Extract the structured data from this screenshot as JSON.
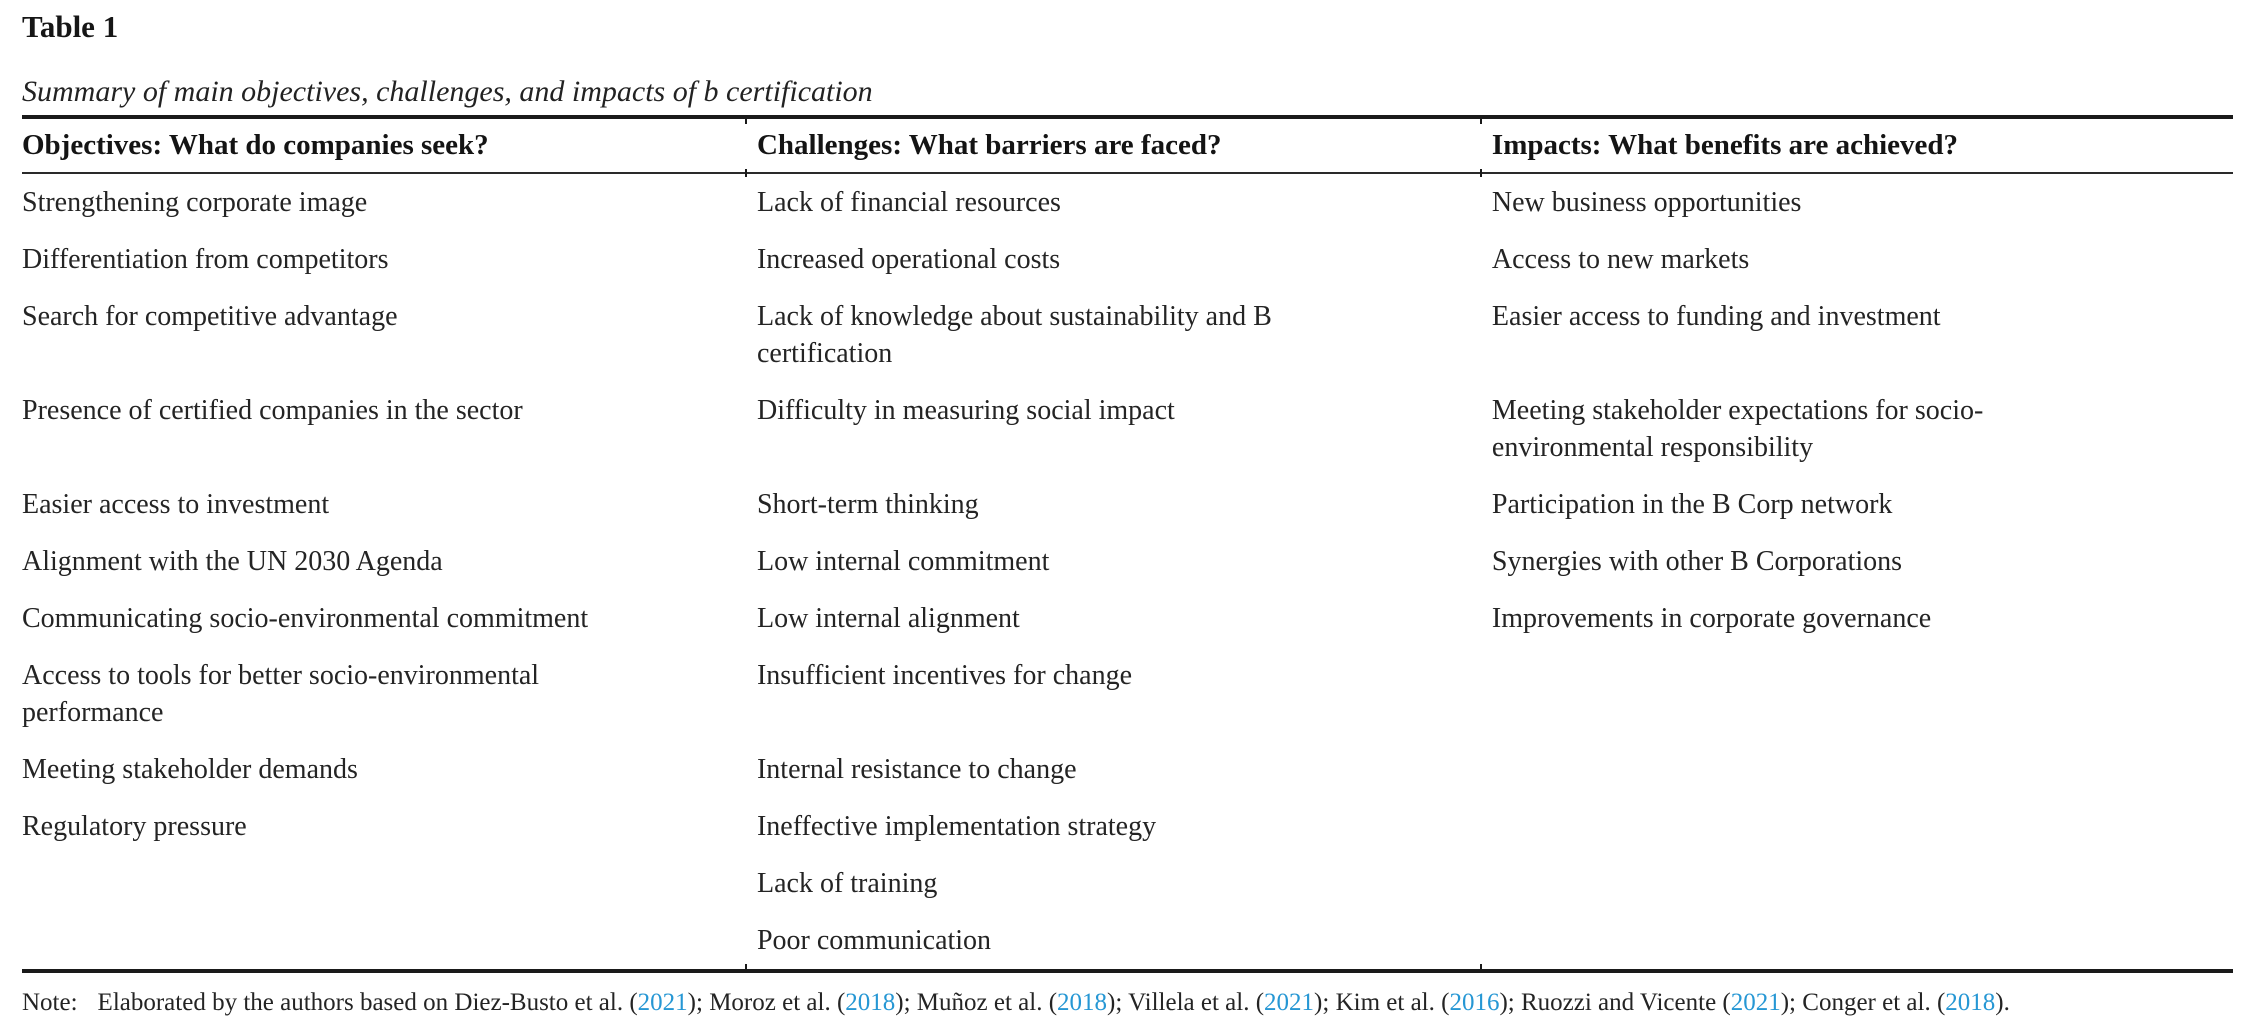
{
  "table": {
    "label": "Table 1",
    "caption": "Summary of main objectives, challenges, and impacts of b certification",
    "columns": [
      "Objectives: What do companies seek?",
      "Challenges: What barriers are faced?",
      "Impacts: What benefits are achieved?"
    ],
    "rows": [
      [
        "Strengthening corporate image",
        "Lack of financial resources",
        "New business opportunities"
      ],
      [
        "Differentiation from competitors",
        "Increased operational costs",
        "Access to new markets"
      ],
      [
        "Search for competitive advantage",
        "Lack of knowledge about sustainability and B\ncertification",
        "Easier access to funding and investment"
      ],
      [
        "Presence of certified companies in the sector",
        "Difficulty in measuring social impact",
        "Meeting stakeholder expectations for socio-\nenvironmental responsibility"
      ],
      [
        "Easier access to investment",
        "Short-term thinking",
        "Participation in the B Corp network"
      ],
      [
        "Alignment with the UN 2030 Agenda",
        "Low internal commitment",
        "Synergies with other B Corporations"
      ],
      [
        "Communicating socio-environmental commitment",
        "Low internal alignment",
        "Improvements in corporate governance"
      ],
      [
        "Access to tools for better socio-environmental\nperformance",
        "Insufficient incentives for change",
        ""
      ],
      [
        "Meeting stakeholder demands",
        "Internal resistance to change",
        ""
      ],
      [
        "Regulatory pressure",
        "Ineffective implementation strategy",
        ""
      ],
      [
        "",
        "Lack of training",
        ""
      ],
      [
        "",
        "Poor communication",
        ""
      ]
    ]
  },
  "note": {
    "label": "Note:",
    "prefix": "Elaborated by the authors based on ",
    "citations": [
      {
        "authors": "Diez-Busto et al.",
        "year": "2021",
        "suffix": "; "
      },
      {
        "authors": "Moroz et al.",
        "year": "2018",
        "suffix": "; "
      },
      {
        "authors": "Muñoz et al.",
        "year": "2018",
        "suffix": "; "
      },
      {
        "authors": "Villela et al.",
        "year": "2021",
        "suffix": "; "
      },
      {
        "authors": "Kim et al.",
        "year": "2016",
        "suffix": "; "
      },
      {
        "authors": "Ruozzi and Vicente",
        "year": "2021",
        "suffix": "; "
      },
      {
        "authors": "Conger et al.",
        "year": "2018",
        "suffix": "."
      }
    ],
    "link_color": "#2697d4"
  },
  "colors": {
    "text": "#1f1f1f",
    "rule": "#1a1a1a",
    "link": "#2697d4"
  }
}
